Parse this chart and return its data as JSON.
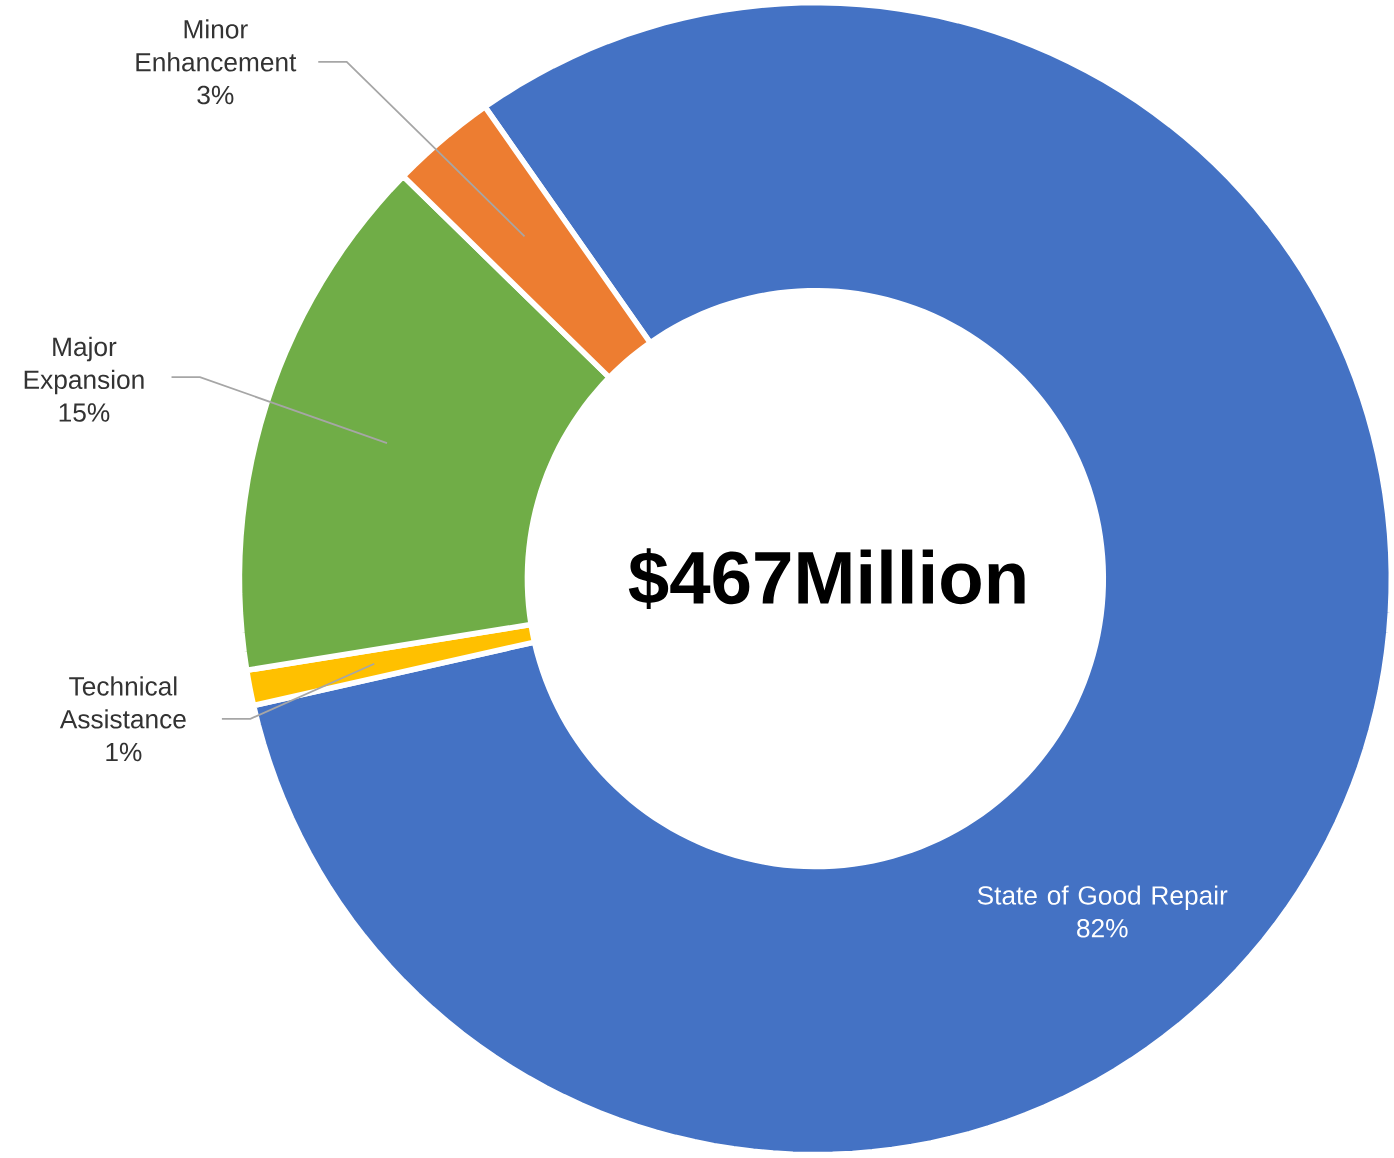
{
  "chart_data": {
    "type": "donut",
    "title": "$467Million",
    "categories": [
      "State of Good Repair",
      "Technical Assistance",
      "Major Expansion",
      "Minor Enhancement"
    ],
    "values": [
      82,
      1,
      15,
      3
    ],
    "colors": [
      "#4472c4",
      "#ffc000",
      "#70ad47",
      "#ed7d31"
    ],
    "value_labels": [
      "82%",
      "1%",
      "15%",
      "3%"
    ]
  }
}
